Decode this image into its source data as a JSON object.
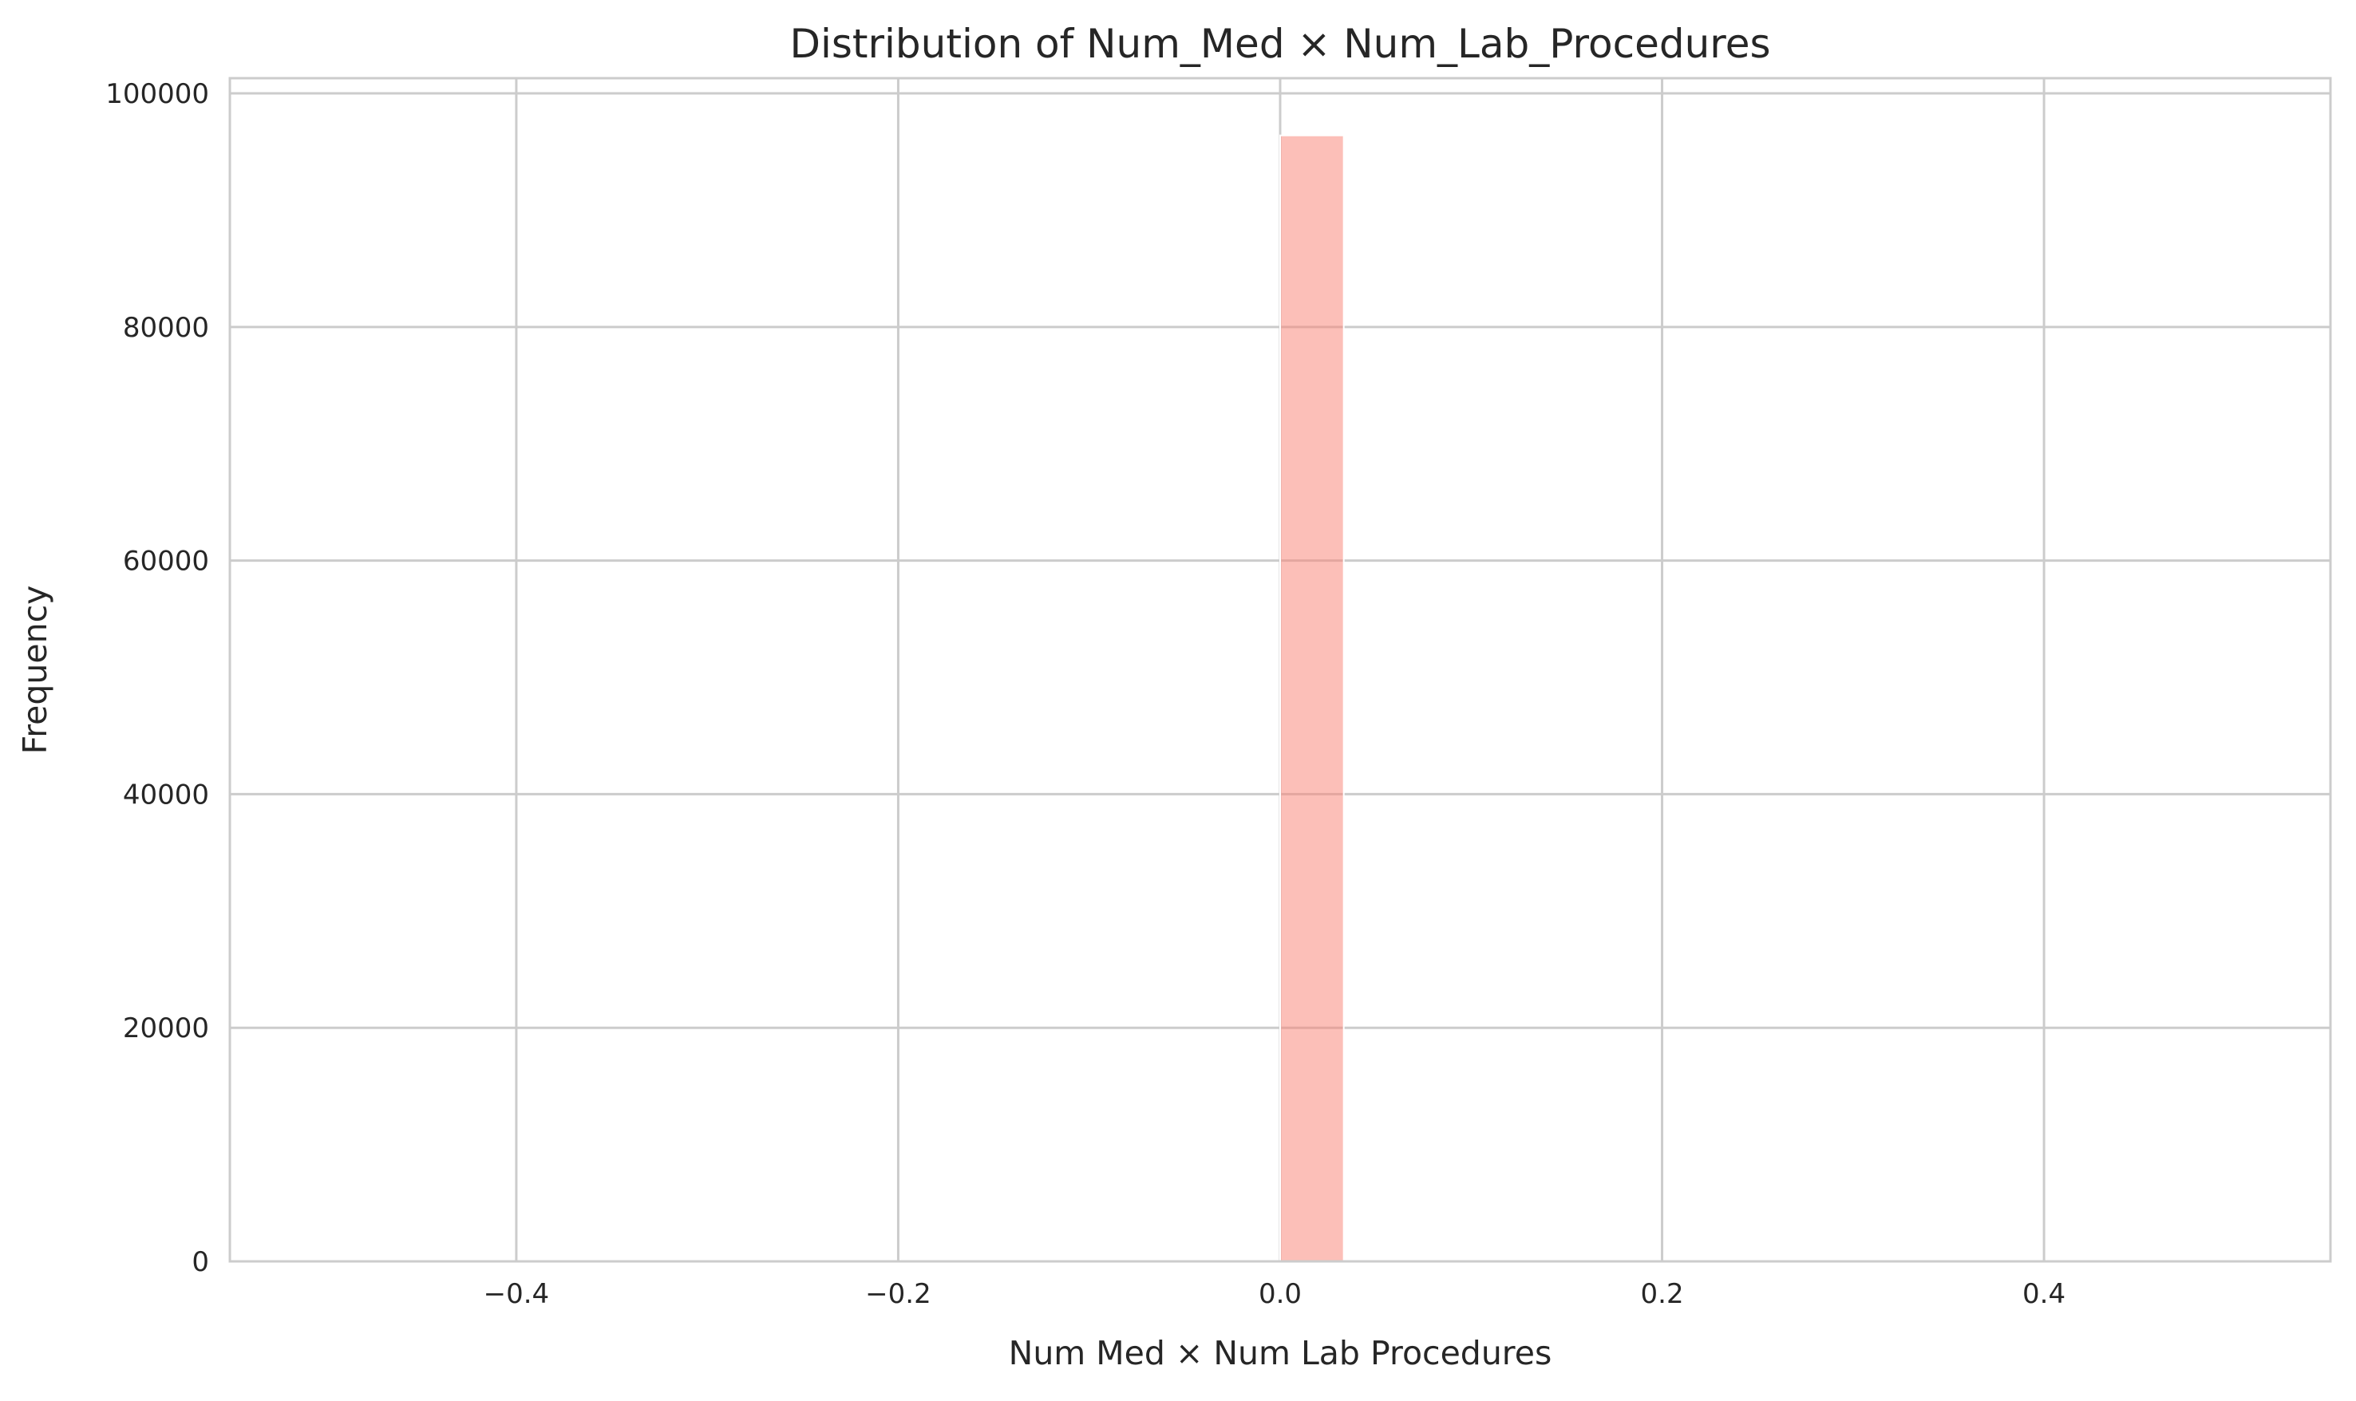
{
  "chart_data": {
    "type": "bar",
    "title": "Distribution of Num_Med × Num_Lab_Procedures",
    "xlabel": "Num Med × Num Lab Procedures",
    "ylabel": "Frequency",
    "xlim": [
      -0.55,
      0.55
    ],
    "ylim": [
      0,
      101300
    ],
    "xticks": [
      -0.4,
      -0.2,
      0.0,
      0.2,
      0.4
    ],
    "xtick_labels": [
      "−0.4",
      "−0.2",
      "0.0",
      "0.2",
      "0.4"
    ],
    "yticks": [
      0,
      20000,
      40000,
      60000,
      80000,
      100000
    ],
    "ytick_labels": [
      "0",
      "20000",
      "40000",
      "60000",
      "80000",
      "100000"
    ],
    "bins": [
      {
        "x_start": 0.0,
        "x_end": 0.0333,
        "count": 96400
      }
    ],
    "bar_color": "#fa8072",
    "bar_opacity": 0.5,
    "grid": true,
    "legend": "none"
  }
}
